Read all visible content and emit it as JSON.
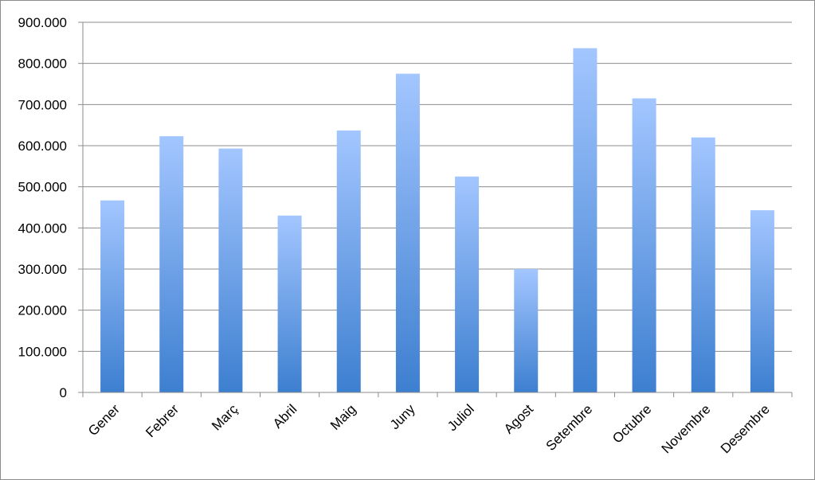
{
  "chart_data": {
    "type": "bar",
    "title": "",
    "xlabel": "",
    "ylabel": "",
    "categories": [
      "Gener",
      "Febrer",
      "Març",
      "Abril",
      "Maig",
      "Juny",
      "Juliol",
      "Agost",
      "Setembre",
      "Octubre",
      "Novembre",
      "Desembre"
    ],
    "values": [
      467000,
      623000,
      593000,
      430000,
      637000,
      775000,
      525000,
      300000,
      837000,
      715000,
      620000,
      443000
    ],
    "ylim": [
      0,
      900000
    ],
    "yticks": [
      0,
      100000,
      200000,
      300000,
      400000,
      500000,
      600000,
      700000,
      800000,
      900000
    ],
    "ytick_labels": [
      "0",
      "100.000",
      "200.000",
      "300.000",
      "400.000",
      "500.000",
      "600.000",
      "700.000",
      "800.000",
      "900.000"
    ],
    "grid": true,
    "legend": "none",
    "colors": {
      "bar_top": "#a3c6ff",
      "bar_bottom": "#3d7fd0",
      "grid": "#8c8c8c",
      "axis": "#8c8c8c"
    }
  }
}
